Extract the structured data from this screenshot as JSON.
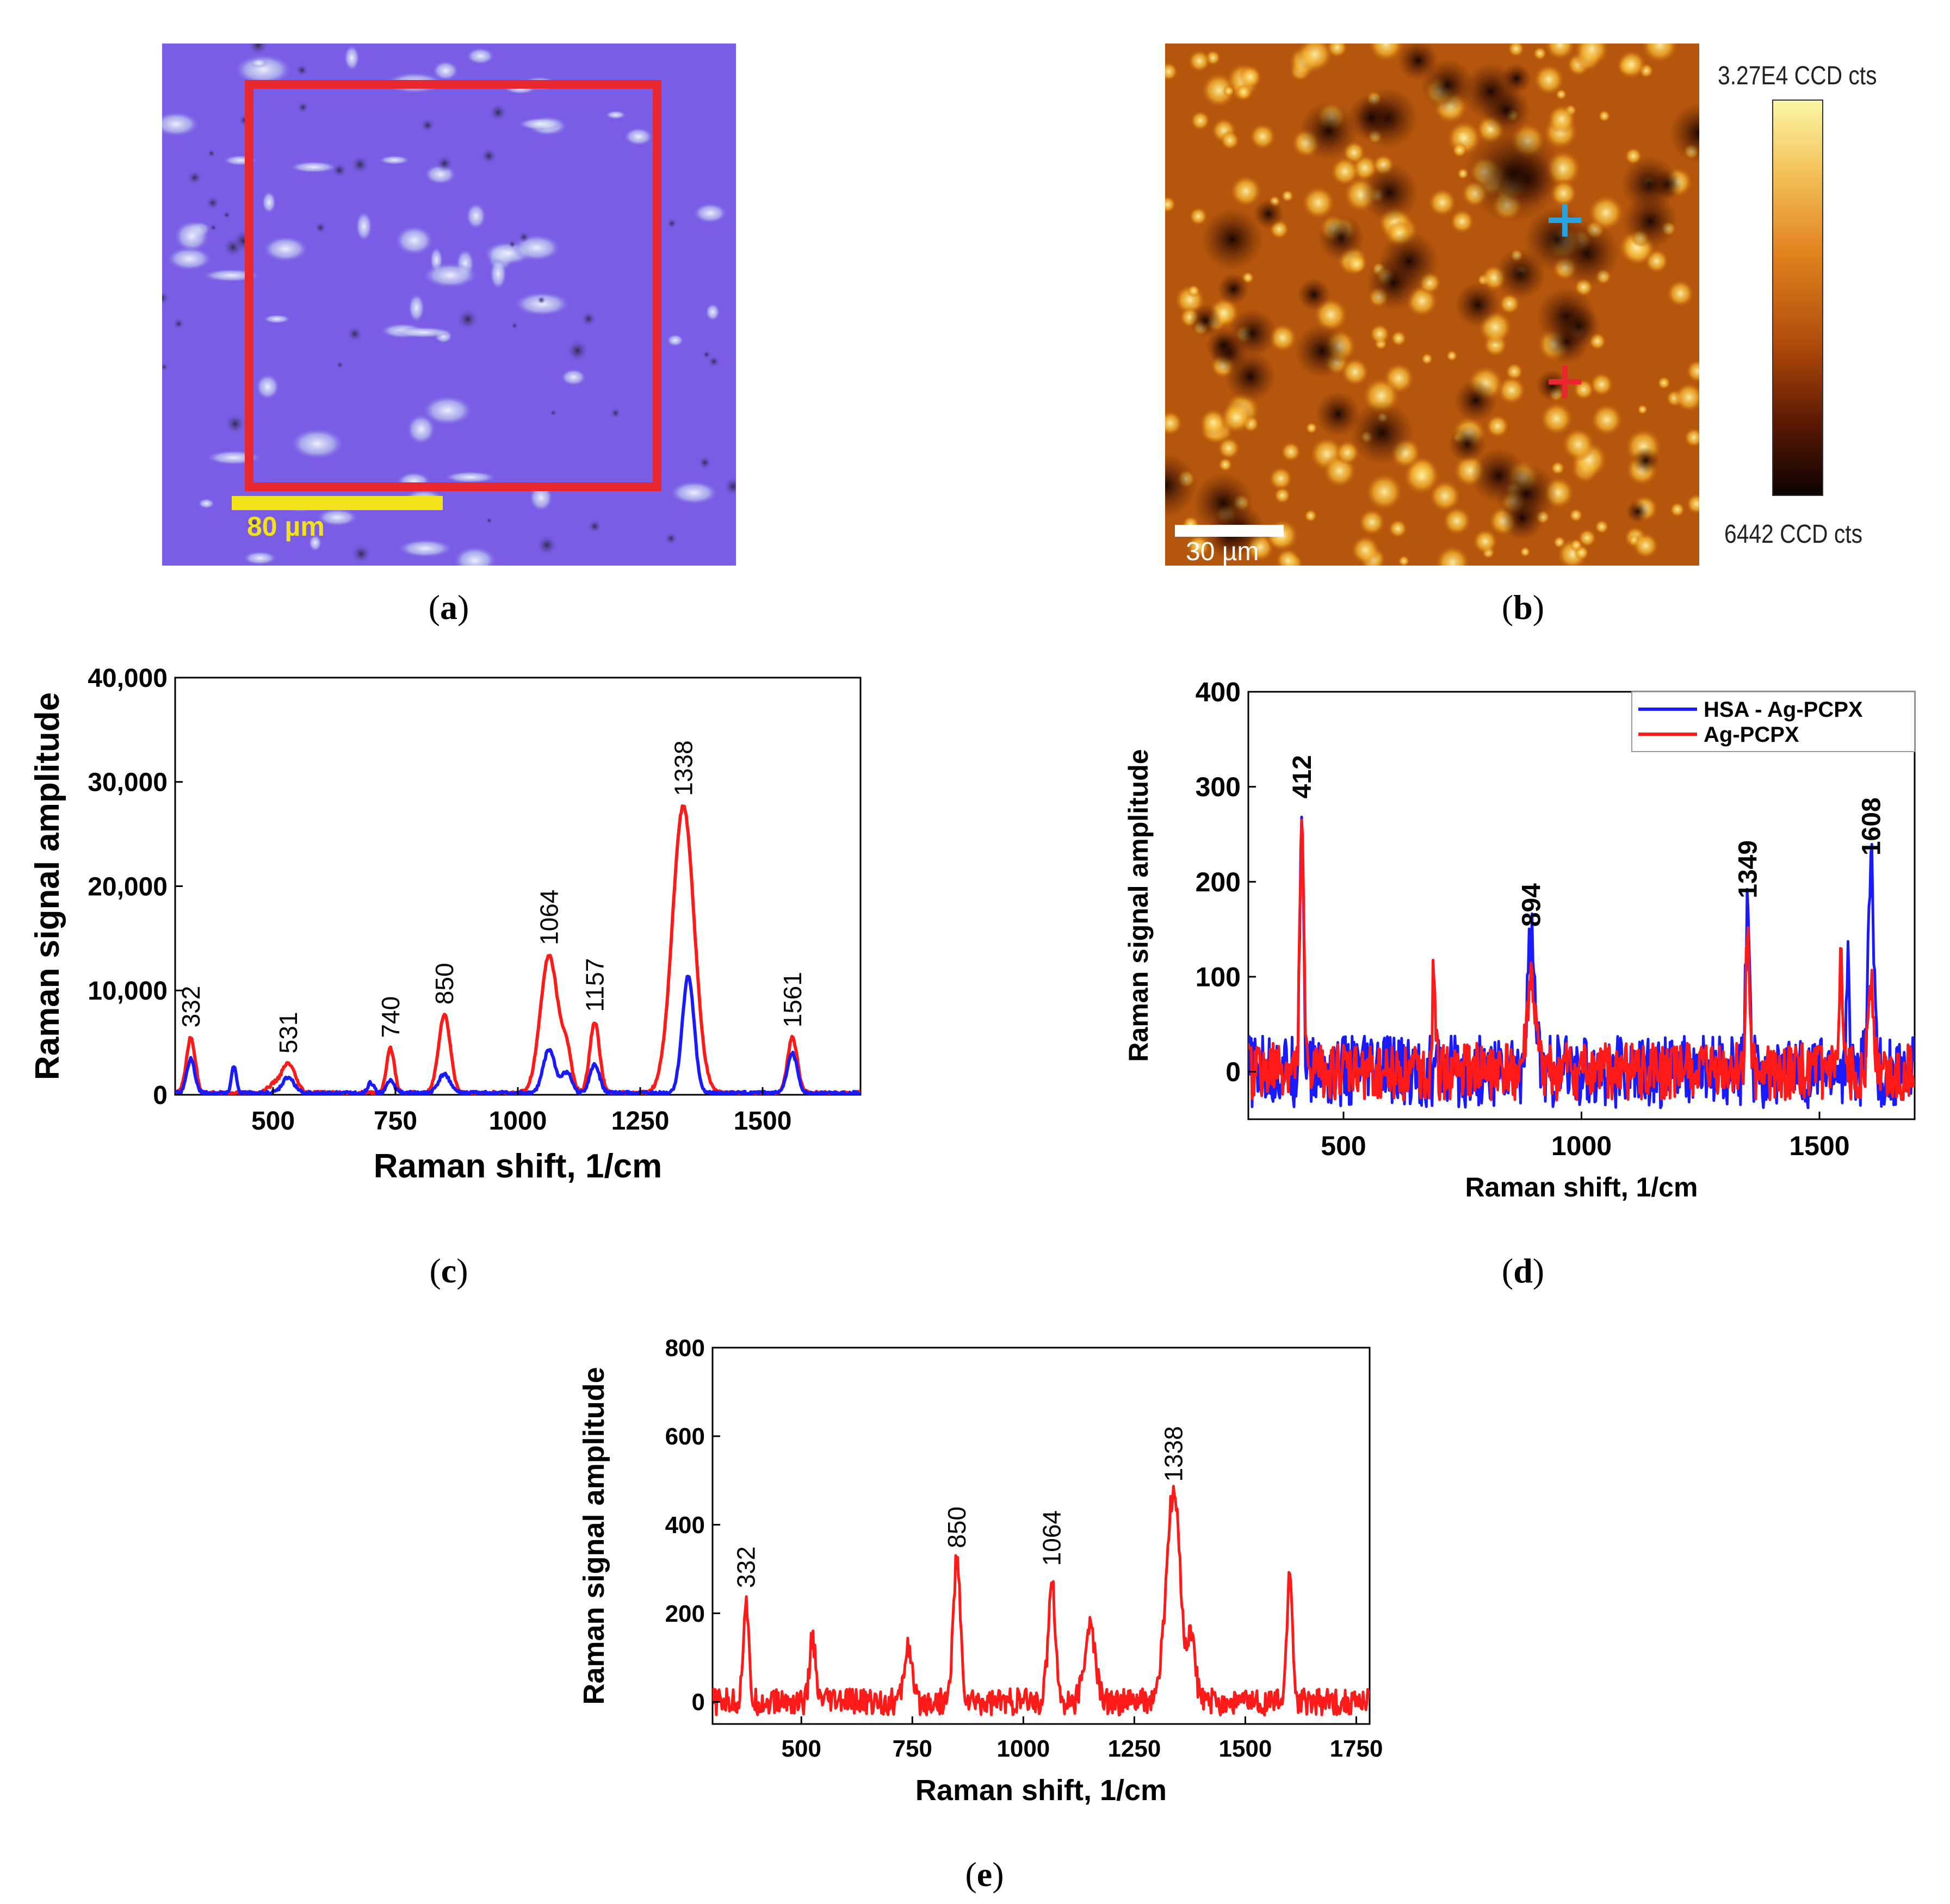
{
  "panel_labels": {
    "a": "a",
    "b": "b",
    "c": "c",
    "d": "d",
    "e": "e"
  },
  "panel_a": {
    "scale_label": "80 µm",
    "colors": {
      "background": "#7a5ce6",
      "roi_frame": "#e8282e",
      "scale_bar": "#f2e21a"
    }
  },
  "panel_b": {
    "scale_label": "30 µm",
    "colorbar_max": "3.27E4 CCD cts",
    "colorbar_min": "6442 CCD cts",
    "colors": {
      "marker_1": "#29a3e0",
      "marker_2": "#e8282e"
    }
  },
  "chart_data": [
    {
      "id": "c",
      "type": "line",
      "xlabel": "Raman shift, 1/cm",
      "ylabel": "Raman signal amplitude",
      "xlim": [
        300,
        1700
      ],
      "ylim": [
        0,
        40000
      ],
      "xticks": [
        500,
        750,
        1000,
        1250,
        1500
      ],
      "xtick_labels": [
        "500",
        "750",
        "1000",
        "1250",
        "1500"
      ],
      "yticks": [
        0,
        10000,
        20000,
        30000,
        40000
      ],
      "ytick_labels": [
        "0",
        "10,000",
        "20,000",
        "30,000",
        "40,000"
      ],
      "series": [
        {
          "name": "red",
          "color": "#ff1a1a",
          "peaks": [
            [
              332,
              5300,
              9
            ],
            [
              500,
              700,
              12
            ],
            [
              531,
              2800,
              14
            ],
            [
              740,
              4300,
              8
            ],
            [
              850,
              7500,
              12
            ],
            [
              1064,
              13200,
              18
            ],
            [
              1100,
              3500,
              10
            ],
            [
              1157,
              6800,
              10
            ],
            [
              1338,
              27500,
              22
            ],
            [
              1561,
              5300,
              10
            ]
          ]
        },
        {
          "name": "blue",
          "color": "#1a1aff",
          "peaks": [
            [
              332,
              3300,
              8
            ],
            [
              420,
              2500,
              5
            ],
            [
              531,
              1500,
              12
            ],
            [
              700,
              1000,
              6
            ],
            [
              740,
              1200,
              8
            ],
            [
              850,
              1800,
              12
            ],
            [
              1064,
              4200,
              12
            ],
            [
              1100,
              2000,
              10
            ],
            [
              1157,
              2700,
              10
            ],
            [
              1348,
              11200,
              12
            ],
            [
              1561,
              3800,
              10
            ]
          ]
        }
      ],
      "annotations": [
        {
          "x": 332,
          "y": 5300,
          "text": "332"
        },
        {
          "x": 531,
          "y": 2800,
          "text": "531"
        },
        {
          "x": 740,
          "y": 4300,
          "text": "740"
        },
        {
          "x": 850,
          "y": 7500,
          "text": "850"
        },
        {
          "x": 1064,
          "y": 13200,
          "text": "1064"
        },
        {
          "x": 1157,
          "y": 6800,
          "text": "1157"
        },
        {
          "x": 1338,
          "y": 27500,
          "text": "1338"
        },
        {
          "x": 1561,
          "y": 5300,
          "text": "1561"
        }
      ]
    },
    {
      "id": "d",
      "type": "line",
      "xlabel": "Raman shift, 1/cm",
      "ylabel": "Raman signal amplitude",
      "xlim": [
        300,
        1700
      ],
      "ylim": [
        -50,
        400
      ],
      "xticks": [
        500,
        1000,
        1500
      ],
      "xtick_labels": [
        "500",
        "1000",
        "1500"
      ],
      "yticks": [
        0,
        100,
        200,
        300,
        400
      ],
      "ytick_labels": [
        "0",
        "100",
        "200",
        "300",
        "400"
      ],
      "legend": "top-right",
      "series": [
        {
          "name": "HSA - Ag-PCPX",
          "color": "#1a1aff",
          "noise": 38,
          "peaks": [
            [
              412,
              275,
              4
            ],
            [
              894,
              140,
              8
            ],
            [
              1349,
              170,
              4
            ],
            [
              1560,
              100,
              3
            ],
            [
              1608,
              215,
              6
            ]
          ]
        },
        {
          "name": "Ag-PCPX",
          "color": "#ff1a1a",
          "noise": 30,
          "peaks": [
            [
              412,
              270,
              4
            ],
            [
              690,
              110,
              3
            ],
            [
              894,
              95,
              8
            ],
            [
              1349,
              140,
              4
            ],
            [
              1545,
              110,
              3
            ],
            [
              1608,
              100,
              6
            ]
          ]
        }
      ],
      "annotations": [
        {
          "x": 412,
          "y": 275,
          "text": "412"
        },
        {
          "x": 894,
          "y": 140,
          "text": "894"
        },
        {
          "x": 1349,
          "y": 170,
          "text": "1349"
        },
        {
          "x": 1608,
          "y": 215,
          "text": "1608"
        }
      ]
    },
    {
      "id": "e",
      "type": "line",
      "xlabel": "Raman shift, 1/cm",
      "ylabel": "Raman signal amplitude",
      "xlim": [
        300,
        1780
      ],
      "ylim": [
        -50,
        800
      ],
      "xticks": [
        500,
        750,
        1000,
        1250,
        1500,
        1750
      ],
      "xtick_labels": [
        "500",
        "750",
        "1000",
        "1250",
        "1500",
        "1750"
      ],
      "yticks": [
        0,
        200,
        400,
        600,
        800
      ],
      "ytick_labels": [
        "0",
        "200",
        "400",
        "600",
        "800"
      ],
      "series": [
        {
          "name": "spectrum",
          "color": "#ff1a1a",
          "noise": 30,
          "peaks": [
            [
              375,
              230,
              6
            ],
            [
              525,
              150,
              6
            ],
            [
              740,
              130,
              8
            ],
            [
              850,
              320,
              8
            ],
            [
              1064,
              280,
              8
            ],
            [
              1150,
              170,
              12
            ],
            [
              1338,
              470,
              16
            ],
            [
              1380,
              140,
              8
            ],
            [
              1600,
              300,
              6
            ]
          ]
        }
      ],
      "annotations": [
        {
          "x": 375,
          "y": 230,
          "text": "332"
        },
        {
          "x": 850,
          "y": 320,
          "text": "850"
        },
        {
          "x": 1064,
          "y": 280,
          "text": "1064"
        },
        {
          "x": 1338,
          "y": 470,
          "text": "1338"
        }
      ]
    }
  ]
}
